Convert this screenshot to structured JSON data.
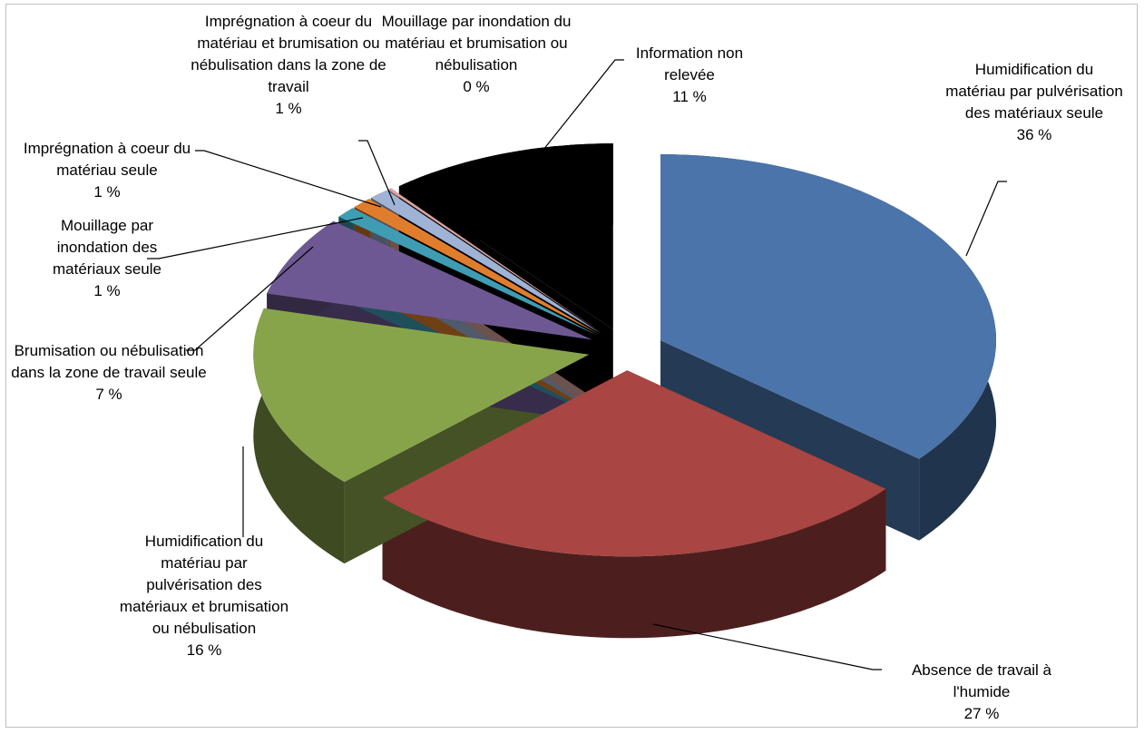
{
  "chart_data": {
    "type": "pie3d",
    "categories": [
      "Humidification du matériau par pulvérisation des matériaux seule",
      "Absence de travail à l'humide",
      "Humidification du matériau par pulvérisation des matériaux et brumisation ou nébulisation",
      "Brumisation ou nébulisation dans la zone de travail seule",
      "Mouillage par inondation des matériaux seule",
      "Imprégnation à coeur du matériau seule",
      "Imprégnation à coeur du matériau et brumisation ou nébulisation dans la zone de travail",
      "Mouillage par inondation du matériau et brumisation ou nébulisation",
      "Information non relevée"
    ],
    "values": [
      36,
      27,
      16,
      7,
      1,
      1,
      1,
      0,
      11
    ],
    "value_labels": [
      "36 %",
      "27 %",
      "16 %",
      "7 %",
      "1 %",
      "1 %",
      "1 %",
      "0 %",
      "11 %"
    ],
    "colors": [
      "#4a74aa",
      "#a94542",
      "#88a44b",
      "#6e5893",
      "#3e9db3",
      "#e07d2c",
      "#9fb3d6",
      "#d8a39e",
      "#000000"
    ]
  }
}
